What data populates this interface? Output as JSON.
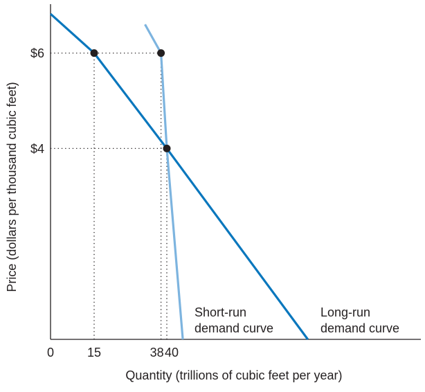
{
  "chart_data": {
    "type": "line",
    "xlabel": "Quantity (trillions of cubic feet per year)",
    "ylabel": "Price (dollars per thousand cubic feet)",
    "x_ticks": [
      {
        "value": 0,
        "label": "0"
      },
      {
        "value": 15,
        "label": "15"
      },
      {
        "value": 38,
        "label": "38"
      },
      {
        "value": 40,
        "label": "40"
      }
    ],
    "y_ticks": [
      {
        "value": 6,
        "label": "$6"
      },
      {
        "value": 4,
        "label": "$4"
      }
    ],
    "xlim": [
      0,
      122
    ],
    "ylim": [
      0,
      7
    ],
    "grid": false,
    "series": [
      {
        "name": "Long-run demand curve",
        "label_lines": [
          "Long-run",
          "demand curve"
        ],
        "color": "#0a77bd",
        "points": [
          [
            0,
            6.82
          ],
          [
            15,
            6
          ],
          [
            40,
            4
          ],
          [
            88.5,
            0
          ]
        ]
      },
      {
        "name": "Short-run demand curve",
        "label_lines": [
          "Short-run",
          "demand curve"
        ],
        "color": "#7db4df",
        "points": [
          [
            32.5,
            6.6
          ],
          [
            38,
            6
          ],
          [
            40,
            4
          ],
          [
            45.5,
            0
          ]
        ]
      }
    ],
    "marked_points": [
      {
        "x": 15,
        "y": 6
      },
      {
        "x": 38,
        "y": 6
      },
      {
        "x": 40,
        "y": 4
      }
    ],
    "guides": [
      {
        "from": [
          0,
          6
        ],
        "to": [
          38,
          6
        ]
      },
      {
        "from": [
          0,
          4
        ],
        "to": [
          40,
          4
        ]
      },
      {
        "from": [
          15,
          0
        ],
        "to": [
          15,
          6
        ]
      },
      {
        "from": [
          38,
          0
        ],
        "to": [
          38,
          6
        ]
      },
      {
        "from": [
          40,
          0
        ],
        "to": [
          40,
          4
        ]
      }
    ]
  }
}
